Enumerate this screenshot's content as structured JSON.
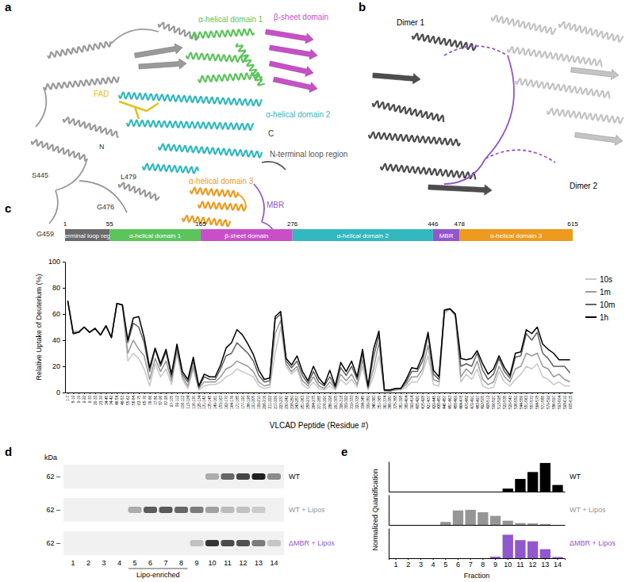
{
  "chart_data": [
    {
      "type": "line",
      "y_label": "Relative Uptake of Deuterium (%)",
      "x_label": "VLCAD Peptide (Residue #)",
      "categories": [
        "1-7",
        "8-19",
        "9-19",
        "9-22",
        "9-33",
        "20-33",
        "23-33",
        "34-45",
        "34-42",
        "46-54",
        "46-53",
        "55-62",
        "56-64",
        "63-75",
        "65-76",
        "76-86",
        "77-86",
        "87-96",
        "87-98",
        "97-105",
        "99-112",
        "106-112",
        "113-124",
        "116-130",
        "125-134",
        "131-143",
        "135-148",
        "149-161",
        "153-163",
        "162-170",
        "164-176",
        "171-185",
        "177-190",
        "186-198",
        "191-205",
        "199-210",
        "206-216",
        "211-222",
        "217-229",
        "223-237",
        "230-242",
        "238-250",
        "243-257",
        "251-263",
        "258-270",
        "264-275",
        "271-285",
        "276-290",
        "286-298",
        "291-305",
        "306-318",
        "309-322",
        "319-333",
        "323-338",
        "334-345",
        "339-350",
        "346-360",
        "351-365",
        "361-374",
        "366-380",
        "375-388",
        "381-398",
        "389-404",
        "399-414",
        "405-420",
        "415-428",
        "421-437",
        "429-445",
        "438-450",
        "446-457",
        "451-463",
        "458-469",
        "464-478",
        "470-482",
        "479-491",
        "483-497",
        "492-505",
        "498-512",
        "506-521",
        "513-528",
        "522-535",
        "529-543",
        "536-550",
        "544-556",
        "551-563",
        "557-570",
        "564-578",
        "571-585",
        "579-592",
        "586-597",
        "593-604",
        "598-610",
        "605-615"
      ],
      "series": [
        {
          "name": "10s",
          "color": "#c8c8c8",
          "values": [
            70,
            47,
            47,
            50,
            46,
            49,
            44,
            51,
            42,
            68,
            67,
            24,
            30,
            26,
            18,
            5,
            22,
            12,
            18,
            6,
            30,
            10,
            3,
            18,
            2,
            5,
            6,
            6,
            8,
            12,
            14,
            18,
            16,
            14,
            12,
            5,
            3,
            4,
            30,
            50,
            20,
            14,
            18,
            6,
            3,
            8,
            3,
            2,
            5,
            2,
            10,
            6,
            10,
            4,
            20,
            2,
            12,
            28,
            1,
            1,
            2,
            2,
            4,
            8,
            8,
            15,
            28,
            6,
            5,
            60,
            64,
            58,
            8,
            14,
            10,
            18,
            5,
            3,
            4,
            16,
            8,
            5,
            10,
            14,
            20,
            18,
            22,
            12,
            10,
            6,
            8,
            5,
            5
          ]
        },
        {
          "name": "1m",
          "color": "#9a9a9a",
          "values": [
            70,
            46,
            46,
            50,
            46,
            49,
            44,
            51,
            42,
            68,
            67,
            30,
            40,
            33,
            28,
            10,
            26,
            16,
            24,
            9,
            32,
            12,
            5,
            20,
            3,
            8,
            8,
            8,
            12,
            18,
            20,
            24,
            22,
            20,
            16,
            8,
            5,
            6,
            45,
            55,
            22,
            16,
            20,
            9,
            5,
            12,
            5,
            3,
            8,
            3,
            14,
            9,
            14,
            6,
            25,
            3,
            18,
            38,
            1,
            1,
            2,
            3,
            6,
            12,
            12,
            18,
            36,
            10,
            8,
            62,
            64,
            59,
            12,
            18,
            14,
            24,
            10,
            6,
            8,
            20,
            12,
            8,
            18,
            20,
            30,
            28,
            30,
            20,
            18,
            12,
            14,
            10,
            8
          ]
        },
        {
          "name": "10m",
          "color": "#616161",
          "values": [
            70,
            45,
            46,
            50,
            46,
            49,
            44,
            51,
            42,
            68,
            67,
            38,
            53,
            50,
            38,
            16,
            33,
            20,
            31,
            12,
            35,
            14,
            8,
            24,
            4,
            12,
            10,
            10,
            18,
            28,
            30,
            38,
            34,
            30,
            24,
            13,
            8,
            9,
            56,
            60,
            24,
            19,
            24,
            13,
            7,
            16,
            8,
            5,
            12,
            4,
            19,
            13,
            20,
            10,
            30,
            4,
            27,
            44,
            2,
            1,
            3,
            3,
            8,
            16,
            16,
            24,
            44,
            14,
            10,
            63,
            64,
            60,
            20,
            22,
            20,
            30,
            17,
            10,
            14,
            26,
            16,
            11,
            27,
            28,
            45,
            40,
            46,
            30,
            26,
            20,
            20,
            20,
            15
          ]
        },
        {
          "name": "1h",
          "color": "#000000",
          "values": [
            70,
            45,
            46,
            50,
            46,
            49,
            44,
            51,
            42,
            68,
            67,
            40,
            57,
            58,
            42,
            19,
            34,
            22,
            33,
            14,
            37,
            16,
            10,
            27,
            5,
            14,
            12,
            12,
            21,
            34,
            38,
            48,
            44,
            37,
            29,
            17,
            10,
            11,
            58,
            62,
            26,
            21,
            28,
            16,
            9,
            20,
            11,
            6,
            17,
            5,
            23,
            16,
            24,
            12,
            33,
            5,
            33,
            47,
            2,
            2,
            3,
            3,
            10,
            19,
            18,
            28,
            46,
            17,
            12,
            63,
            64,
            60,
            26,
            25,
            26,
            32,
            22,
            14,
            18,
            28,
            19,
            13,
            30,
            31,
            48,
            45,
            50,
            37,
            33,
            30,
            25,
            25,
            25
          ]
        }
      ],
      "ylim": [
        0,
        100
      ],
      "yticks": [
        0,
        20,
        40,
        60,
        80,
        100
      ],
      "legend": "right"
    },
    {
      "type": "bar",
      "y_label": "Normalized Quantification",
      "x_label": "Fraction",
      "categories": [
        1,
        2,
        3,
        4,
        5,
        6,
        7,
        8,
        9,
        10,
        11,
        12,
        13,
        14
      ],
      "series": [
        {
          "name": "WT",
          "color": "#000000",
          "values": [
            0,
            0,
            0,
            0,
            0,
            0,
            0,
            0,
            0,
            0.1,
            0.42,
            0.65,
            0.95,
            0.22
          ]
        },
        {
          "name": "WT + Lipos",
          "color": "#969696",
          "values": [
            0,
            0,
            0,
            0,
            0.1,
            0.48,
            0.5,
            0.42,
            0.3,
            0.14,
            0.06,
            0.05,
            0.03,
            0
          ]
        },
        {
          "name": "ΔMBR + Lipos",
          "color": "#9157cc",
          "values": [
            0,
            0,
            0,
            0,
            0,
            0,
            0,
            0,
            0.05,
            0.78,
            0.6,
            0.56,
            0.3,
            0.04
          ]
        }
      ],
      "ylim": [
        0,
        1
      ],
      "tick_labels": "x"
    }
  ],
  "figure": {
    "panel_labels": [
      "a",
      "b",
      "c",
      "d",
      "e"
    ],
    "a": {
      "labels": [
        {
          "text": "α-helical domain 1",
          "color": "#5cc45c"
        },
        {
          "text": "β-sheet domain",
          "color": "#c94fc9"
        },
        {
          "text": "FAD",
          "color": "#e3c21b"
        },
        {
          "text": "α-helical domain 2",
          "color": "#33b8c0"
        },
        {
          "text": "C",
          "color": "#333333"
        },
        {
          "text": "N-terminal loop region",
          "color": "#555555"
        },
        {
          "text": "α-helical domain 3",
          "color": "#ee9a1e"
        },
        {
          "text": "MBR",
          "color": "#9157cc"
        },
        {
          "text": "N",
          "color": "#333333"
        },
        {
          "text": "S445",
          "color": "#333333"
        },
        {
          "text": "G459",
          "color": "#333333"
        },
        {
          "text": "L479",
          "color": "#333333"
        },
        {
          "text": "G476",
          "color": "#333333"
        }
      ]
    },
    "b": {
      "labels": [
        "Dimer 1",
        "Dimer 2"
      ]
    },
    "c": {
      "domain_map": {
        "ticks": [
          1,
          55,
          165,
          276,
          446,
          478,
          615
        ],
        "domains": [
          {
            "name": "N-terminal loop region",
            "color": "#6b6b6b"
          },
          {
            "name": "α-helical domain 1",
            "color": "#5cc45c"
          },
          {
            "name": "β-sheet domain",
            "color": "#c94fc9"
          },
          {
            "name": "α-helical domain 2",
            "color": "#33b8c0"
          },
          {
            "name": "MBR",
            "color": "#9157cc"
          },
          {
            "name": "α-helical domain 3",
            "color": "#ee9a1e"
          }
        ]
      }
    },
    "d": {
      "unit": "kDa",
      "size_marker": "62 –",
      "lanes": [
        1,
        2,
        3,
        4,
        5,
        6,
        7,
        8,
        9,
        10,
        11,
        12,
        13,
        14
      ],
      "lipo_enriched": {
        "label": "Lipo-enriched",
        "lanes": [
          5,
          8
        ]
      }
    }
  }
}
